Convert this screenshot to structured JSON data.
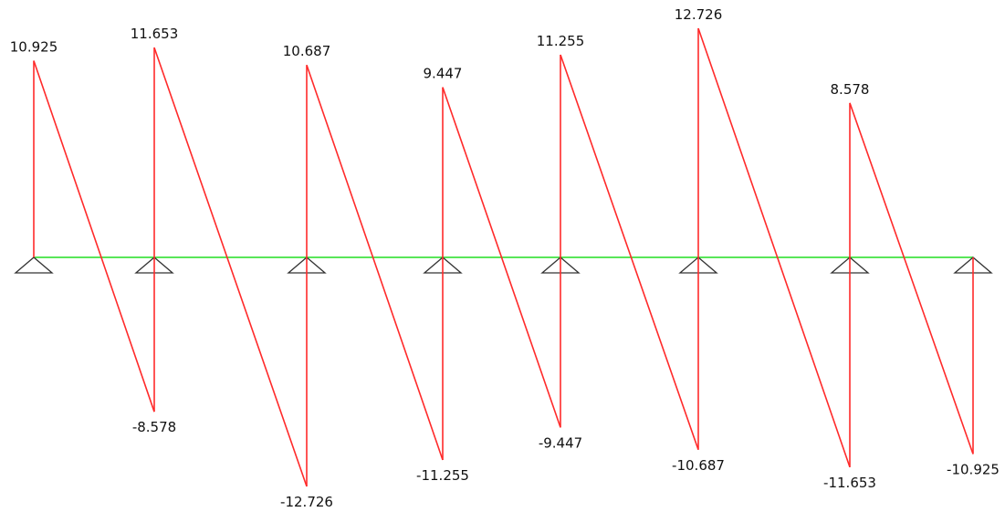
{
  "colors": {
    "diagram_line": "#ff2a2a",
    "beam_line": "#22dd22",
    "support_stroke": "#333333",
    "label_text": "#111111"
  },
  "icons": {
    "support": "triangle-pin-support-icon"
  },
  "diagram": {
    "x_range": [
      0,
      7
    ],
    "y_range": [
      -12.726,
      12.726
    ],
    "supports": [
      0,
      1,
      2,
      3,
      4,
      5,
      6,
      7
    ],
    "spans": [
      {
        "start_value": 10.925,
        "end_value": -8.578,
        "start_label": "10.925",
        "end_label": "-8.578"
      },
      {
        "start_value": 11.653,
        "end_value": -12.726,
        "start_label": "11.653",
        "end_label": "-12.726"
      },
      {
        "start_value": 10.687,
        "end_value": -11.255,
        "start_label": "10.687",
        "end_label": "-11.255"
      },
      {
        "start_value": 9.447,
        "end_value": -9.447,
        "start_label": "9.447",
        "end_label": "-9.447"
      },
      {
        "start_value": 11.255,
        "end_value": -10.687,
        "start_label": "11.255",
        "end_label": "-10.687"
      },
      {
        "start_value": 12.726,
        "end_value": -11.653,
        "start_label": "12.726",
        "end_label": "-11.653"
      },
      {
        "start_value": 8.578,
        "end_value": -10.925,
        "start_label": "8.578",
        "end_label": "-10.925"
      }
    ]
  }
}
